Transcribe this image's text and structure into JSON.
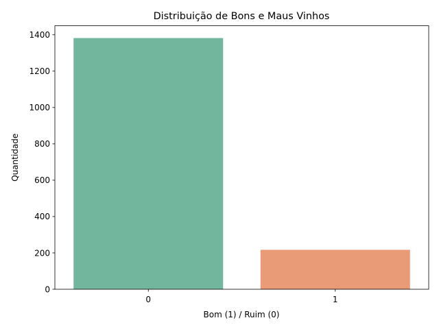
{
  "chart_data": {
    "type": "bar",
    "title": "Distribuição de Bons e Maus Vinhos",
    "xlabel": "Bom (1) / Ruim (0)",
    "ylabel": "Quantidade",
    "categories": [
      "0",
      "1"
    ],
    "values": [
      1382,
      217
    ],
    "colors": [
      "#73b69e",
      "#e99a77"
    ],
    "ylim": [
      0,
      1450
    ],
    "yticks": [
      0,
      200,
      400,
      600,
      800,
      1000,
      1200,
      1400
    ],
    "grid": false,
    "legend": "none"
  }
}
